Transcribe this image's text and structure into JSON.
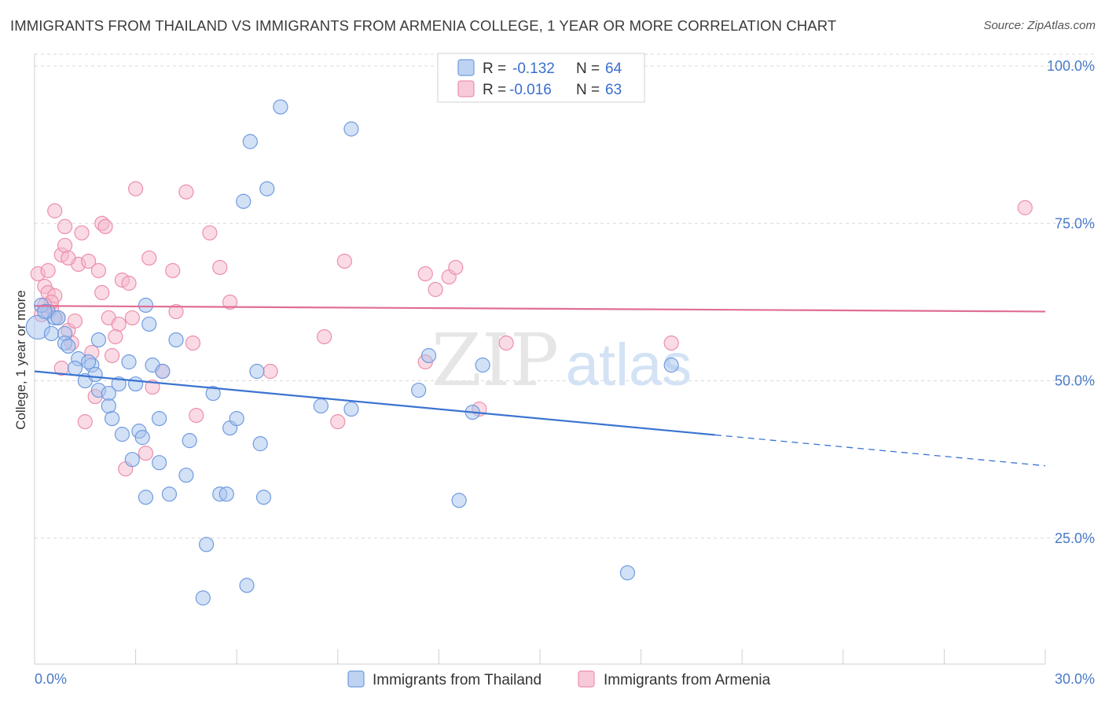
{
  "title": "IMMIGRANTS FROM THAILAND VS IMMIGRANTS FROM ARMENIA COLLEGE, 1 YEAR OR MORE CORRELATION CHART",
  "source": "Source: ZipAtlas.com",
  "watermark": {
    "zip": "ZIP",
    "atlas": "atlas"
  },
  "colors": {
    "thailand_fill": "#a8c4ee",
    "thailand_stroke": "#6f9be0",
    "thailand_line": "#3a74d1",
    "armenia_fill": "#f6b8cc",
    "armenia_stroke": "#ec8fab",
    "armenia_line": "#e06e95",
    "tick_text": "#4a7ac9",
    "grid": "#d8d8d8"
  },
  "legend": {
    "r_label": "R =",
    "n_label": "N =",
    "rows": [
      {
        "r": "-0.132",
        "n": "64"
      },
      {
        "r": "-0.016",
        "n": "63"
      }
    ]
  },
  "chart_data": {
    "type": "scatter",
    "title": "IMMIGRANTS FROM THAILAND VS IMMIGRANTS FROM ARMENIA COLLEGE, 1 YEAR OR MORE CORRELATION CHART",
    "xlabel": "",
    "ylabel": "College, 1 year or more",
    "xlim": [
      0,
      30
    ],
    "ylim": [
      5,
      102
    ],
    "x_tick_labels": [
      "0.0%",
      "30.0%"
    ],
    "y_ticks": [
      25,
      50,
      75,
      100
    ],
    "y_tick_labels": [
      "25.0%",
      "50.0%",
      "75.0%",
      "100.0%"
    ],
    "grid": "horizontal dashed",
    "legend_position": "top-center",
    "series": [
      {
        "name": "Immigrants from Thailand",
        "r": -0.132,
        "n": 64,
        "trend": {
          "x0": 0,
          "y0": 51.5,
          "x1": 20.2,
          "y1": 41.4,
          "dashed_to_x": 30,
          "dashed_to_y": 36.5
        },
        "points": [
          [
            0.1,
            58.5
          ],
          [
            0.4,
            61.0
          ],
          [
            0.6,
            60.0
          ],
          [
            0.5,
            57.5
          ],
          [
            0.9,
            57.5
          ],
          [
            0.9,
            56.0
          ],
          [
            1.0,
            55.5
          ],
          [
            1.3,
            53.5
          ],
          [
            1.2,
            52.0
          ],
          [
            1.7,
            52.5
          ],
          [
            1.5,
            50.0
          ],
          [
            1.8,
            51.0
          ],
          [
            1.9,
            48.5
          ],
          [
            2.2,
            48.0
          ],
          [
            2.2,
            46.0
          ],
          [
            2.3,
            44.0
          ],
          [
            2.6,
            41.5
          ],
          [
            1.9,
            56.5
          ],
          [
            2.8,
            53.0
          ],
          [
            3.0,
            49.5
          ],
          [
            3.1,
            42.0
          ],
          [
            3.2,
            41.0
          ],
          [
            2.9,
            37.5
          ],
          [
            3.3,
            62.0
          ],
          [
            3.4,
            59.0
          ],
          [
            3.5,
            52.5
          ],
          [
            3.7,
            44.0
          ],
          [
            3.7,
            37.0
          ],
          [
            3.8,
            51.5
          ],
          [
            3.3,
            31.5
          ],
          [
            4.0,
            32.0
          ],
          [
            4.2,
            56.5
          ],
          [
            4.5,
            35.0
          ],
          [
            4.6,
            40.5
          ],
          [
            5.1,
            24.0
          ],
          [
            5.3,
            48.0
          ],
          [
            5.5,
            32.0
          ],
          [
            5.7,
            32.0
          ],
          [
            5.8,
            42.5
          ],
          [
            6.0,
            44.0
          ],
          [
            6.2,
            78.5
          ],
          [
            6.3,
            17.5
          ],
          [
            6.4,
            88.0
          ],
          [
            6.6,
            51.5
          ],
          [
            6.7,
            40.0
          ],
          [
            6.8,
            31.5
          ],
          [
            6.9,
            80.5
          ],
          [
            7.3,
            93.5
          ],
          [
            5.0,
            15.5
          ],
          [
            8.5,
            46.0
          ],
          [
            9.4,
            45.5
          ],
          [
            9.4,
            90.0
          ],
          [
            11.4,
            48.5
          ],
          [
            11.7,
            54.0
          ],
          [
            12.6,
            31.0
          ],
          [
            13.0,
            45.0
          ],
          [
            13.3,
            52.5
          ],
          [
            17.6,
            19.5
          ],
          [
            18.9,
            52.5
          ],
          [
            0.2,
            62.0
          ],
          [
            0.3,
            61.0
          ],
          [
            0.7,
            60.0
          ],
          [
            1.6,
            53.0
          ],
          [
            2.5,
            49.5
          ]
        ]
      },
      {
        "name": "Immigrants from Armenia",
        "r": -0.016,
        "n": 63,
        "trend": {
          "x0": 0,
          "y0": 61.9,
          "x1": 30,
          "y1": 61.0
        },
        "points": [
          [
            0.1,
            67.0
          ],
          [
            0.3,
            65.0
          ],
          [
            0.4,
            67.5
          ],
          [
            0.4,
            64.0
          ],
          [
            0.5,
            61.5
          ],
          [
            0.6,
            63.5
          ],
          [
            0.6,
            77.0
          ],
          [
            0.7,
            60.0
          ],
          [
            0.8,
            70.0
          ],
          [
            0.8,
            52.0
          ],
          [
            0.9,
            71.5
          ],
          [
            0.9,
            74.5
          ],
          [
            1.0,
            58.0
          ],
          [
            1.1,
            56.0
          ],
          [
            1.2,
            59.5
          ],
          [
            1.3,
            68.5
          ],
          [
            1.4,
            73.5
          ],
          [
            1.5,
            43.5
          ],
          [
            1.6,
            69.0
          ],
          [
            1.8,
            47.5
          ],
          [
            1.9,
            67.5
          ],
          [
            2.0,
            64.0
          ],
          [
            2.0,
            75.0
          ],
          [
            2.1,
            74.5
          ],
          [
            2.2,
            60.0
          ],
          [
            2.3,
            54.0
          ],
          [
            2.5,
            59.0
          ],
          [
            2.6,
            66.0
          ],
          [
            2.7,
            36.0
          ],
          [
            2.8,
            65.5
          ],
          [
            2.9,
            60.0
          ],
          [
            3.0,
            80.5
          ],
          [
            3.3,
            38.5
          ],
          [
            3.4,
            69.5
          ],
          [
            3.5,
            49.0
          ],
          [
            3.8,
            51.5
          ],
          [
            4.1,
            67.5
          ],
          [
            4.2,
            61.0
          ],
          [
            4.5,
            80.0
          ],
          [
            4.7,
            56.0
          ],
          [
            4.8,
            44.5
          ],
          [
            5.2,
            73.5
          ],
          [
            5.5,
            68.0
          ],
          [
            5.8,
            62.5
          ],
          [
            7.0,
            51.5
          ],
          [
            8.6,
            57.0
          ],
          [
            9.0,
            43.5
          ],
          [
            9.2,
            69.0
          ],
          [
            11.6,
            53.0
          ],
          [
            11.6,
            67.0
          ],
          [
            11.9,
            64.5
          ],
          [
            12.3,
            66.5
          ],
          [
            12.5,
            68.0
          ],
          [
            13.2,
            45.5
          ],
          [
            14.0,
            56.0
          ],
          [
            18.9,
            56.0
          ],
          [
            29.4,
            77.5
          ],
          [
            0.2,
            60.5
          ],
          [
            0.5,
            62.5
          ],
          [
            1.0,
            69.5
          ],
          [
            0.3,
            62.0
          ],
          [
            1.7,
            54.5
          ],
          [
            2.4,
            57.0
          ]
        ]
      }
    ]
  }
}
